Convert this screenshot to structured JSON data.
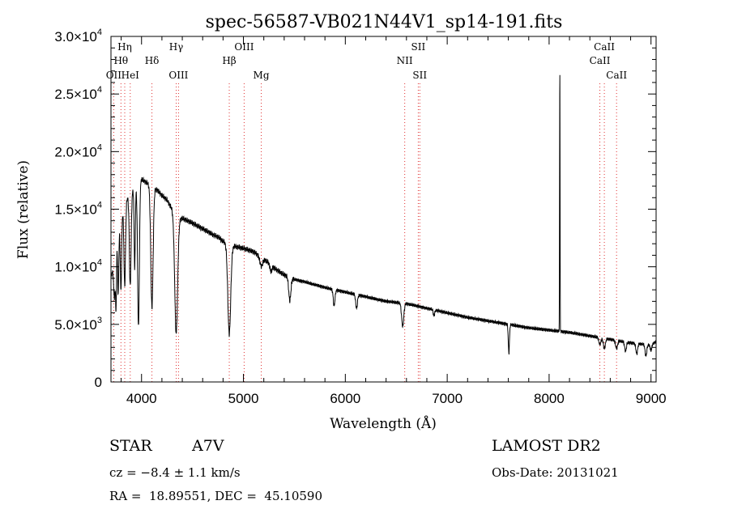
{
  "chart_data": {
    "type": "line",
    "title": "spec-56587-VB021N44V1_sp14-191.fits",
    "xlabel": "Wavelength (Å)",
    "ylabel": "Flux (relative)",
    "xlim": [
      3700,
      9050
    ],
    "ylim": [
      0,
      30000
    ],
    "x_ticks": [
      {
        "value": 4000,
        "label": "4000"
      },
      {
        "value": 5000,
        "label": "5000"
      },
      {
        "value": 6000,
        "label": "6000"
      },
      {
        "value": 7000,
        "label": "7000"
      },
      {
        "value": 8000,
        "label": "8000"
      },
      {
        "value": 9000,
        "label": "9000"
      }
    ],
    "y_ticks": [
      {
        "value": 0,
        "mant": "0",
        "exp": ""
      },
      {
        "value": 5000,
        "mant": "5.0×10",
        "exp": "3"
      },
      {
        "value": 10000,
        "mant": "1.0×10",
        "exp": "4"
      },
      {
        "value": 15000,
        "mant": "1.5×10",
        "exp": "4"
      },
      {
        "value": 20000,
        "mant": "2.0×10",
        "exp": "4"
      },
      {
        "value": 25000,
        "mant": "2.5×10",
        "exp": "4"
      },
      {
        "value": 30000,
        "mant": "3.0×10",
        "exp": "4"
      }
    ],
    "spectral_lines": [
      {
        "label": "OII",
        "wavelength": 3727,
        "row": 3
      },
      {
        "label": "Hη",
        "wavelength": 3835,
        "row": 1
      },
      {
        "label": "Hθ",
        "wavelength": 3798,
        "row": 2
      },
      {
        "label": "HeI",
        "wavelength": 3889,
        "row": 3
      },
      {
        "label": "Hδ",
        "wavelength": 4102,
        "row": 2
      },
      {
        "label": "Hγ",
        "wavelength": 4340,
        "row": 1
      },
      {
        "label": "OIII",
        "wavelength": 4363,
        "row": 3
      },
      {
        "label": "Hβ",
        "wavelength": 4861,
        "row": 2
      },
      {
        "label": "OIII",
        "wavelength": 5007,
        "row": 1
      },
      {
        "label": "Mg",
        "wavelength": 5175,
        "row": 3
      },
      {
        "label": "NII",
        "wavelength": 6583,
        "row": 2
      },
      {
        "label": "SII",
        "wavelength": 6716,
        "row": 1
      },
      {
        "label": "SII",
        "wavelength": 6731,
        "row": 3
      },
      {
        "label": "CaII",
        "wavelength": 8498,
        "row": 2
      },
      {
        "label": "CaII",
        "wavelength": 8542,
        "row": 1
      },
      {
        "label": "CaII",
        "wavelength": 8662,
        "row": 3
      }
    ],
    "continuum": {
      "x": [
        3700,
        3730,
        3760,
        3800,
        3850,
        3900,
        3950,
        4000,
        4050,
        4100,
        4150,
        4200,
        4250,
        4300,
        4330,
        4400,
        4450,
        4500,
        4600,
        4700,
        4750,
        4800,
        4900,
        5000,
        5100,
        5200,
        5300,
        5400,
        5500,
        5600,
        5800,
        6000,
        6200,
        6400,
        6600,
        6800,
        7000,
        7200,
        7400,
        7600,
        7800,
        8000,
        8200,
        8400,
        8600,
        8800,
        9000,
        9050
      ],
      "y": [
        9000,
        10500,
        12500,
        14500,
        15800,
        16500,
        17000,
        17600,
        17300,
        17000,
        16700,
        16200,
        15800,
        15000,
        14200,
        14200,
        14000,
        13800,
        13300,
        12800,
        12600,
        12200,
        11800,
        11600,
        11300,
        10700,
        9900,
        9300,
        8900,
        8700,
        8200,
        7800,
        7400,
        7000,
        6800,
        6400,
        6000,
        5600,
        5300,
        5000,
        4700,
        4500,
        4300,
        4000,
        3700,
        3400,
        3200,
        3500
      ]
    },
    "absorption_features": [
      {
        "center": 3735,
        "depth": 3500,
        "width": 12
      },
      {
        "center": 3750,
        "depth": 5000,
        "width": 6
      },
      {
        "center": 3771,
        "depth": 5500,
        "width": 8
      },
      {
        "center": 3798,
        "depth": 6500,
        "width": 9
      },
      {
        "center": 3835,
        "depth": 7000,
        "width": 11
      },
      {
        "center": 3889,
        "depth": 8000,
        "width": 12
      },
      {
        "center": 3933,
        "depth": 7000,
        "width": 8
      },
      {
        "center": 3970,
        "depth": 12500,
        "width": 12
      },
      {
        "center": 4102,
        "depth": 10500,
        "width": 16
      },
      {
        "center": 4340,
        "depth": 10000,
        "width": 20
      },
      {
        "center": 4861,
        "depth": 7800,
        "width": 20
      },
      {
        "center": 5175,
        "depth": 800,
        "width": 20
      },
      {
        "center": 5270,
        "depth": 600,
        "width": 12
      },
      {
        "center": 5455,
        "depth": 2000,
        "width": 15
      },
      {
        "center": 5890,
        "depth": 1400,
        "width": 12
      },
      {
        "center": 6110,
        "depth": 1200,
        "width": 12
      },
      {
        "center": 6563,
        "depth": 2000,
        "width": 15
      },
      {
        "center": 6870,
        "depth": 500,
        "width": 10
      },
      {
        "center": 7605,
        "depth": 2500,
        "width": 8
      },
      {
        "center": 8498,
        "depth": 600,
        "width": 14
      },
      {
        "center": 8542,
        "depth": 900,
        "width": 14
      },
      {
        "center": 8662,
        "depth": 700,
        "width": 14
      },
      {
        "center": 8750,
        "depth": 800,
        "width": 12
      },
      {
        "center": 8860,
        "depth": 900,
        "width": 12
      },
      {
        "center": 8950,
        "depth": 1000,
        "width": 12
      },
      {
        "center": 9000,
        "depth": 500,
        "width": 10
      }
    ],
    "emission_features": [
      {
        "center": 8105,
        "height": 23000,
        "width": 3
      }
    ]
  },
  "info": {
    "object_class": "STAR",
    "subclass": "A7V",
    "redshift": "cz = −8.4 ± 1.1 km/s",
    "coords": "RA =  18.89551, DEC =  45.10590",
    "survey": "LAMOST DR2",
    "obs_date": "Obs-Date: 20131021"
  }
}
